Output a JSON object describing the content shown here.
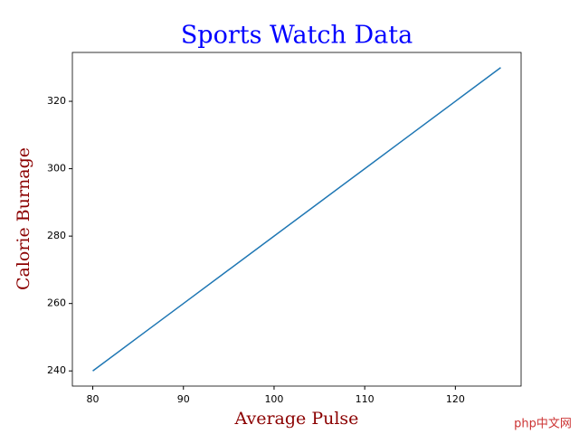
{
  "chart_data": {
    "type": "line",
    "title": "Sports Watch Data",
    "x_label": "Average Pulse",
    "y_label": "Calorie Burnage",
    "x": [
      80,
      85,
      90,
      95,
      100,
      105,
      110,
      115,
      120,
      125
    ],
    "series": [
      {
        "color": "#1f77b4",
        "values": [
          240,
          250,
          260,
          270,
          280,
          290,
          300,
          310,
          320,
          330
        ]
      }
    ],
    "xlim": [
      77.75,
      127.25
    ],
    "xticks": [
      80,
      90,
      100,
      110,
      120
    ],
    "ylim": [
      235.5,
      334.5
    ],
    "yticks": [
      240,
      260,
      280,
      300,
      320
    ],
    "title_color": "#0000ff",
    "label_color": "#8b0000",
    "grid": false
  },
  "watermark": "php中文网"
}
